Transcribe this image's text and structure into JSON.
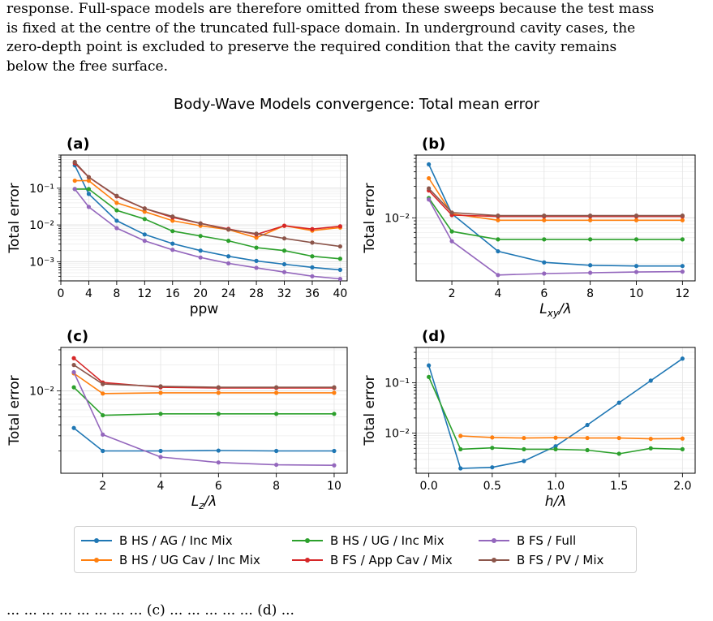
{
  "paragraph": {
    "lines": [
      "response. Full-space models are therefore omitted from these sweeps because the test mass",
      "is fixed at the centre of the truncated full-space domain. In underground cavity cases, the",
      "zero-depth point is excluded to preserve the required condition that the cavity remains",
      "below the free surface."
    ]
  },
  "figure_title": "Body-Wave Models convergence: Total mean error",
  "bottom_text": "... ... ... ... ... ... ... ... (c) ... ... ... ... ... (d) ...",
  "colors": {
    "B HS / AG / Inc Mix": "#1f77b4",
    "B HS / UG Cav / Inc Mix": "#ff7f0e",
    "B HS / UG / Inc Mix": "#2ca02c",
    "B FS / App Cav / Mix": "#d62728",
    "B FS / Full": "#9467bd",
    "B FS / PV / Mix": "#8c564b"
  },
  "legend": [
    "B HS / AG / Inc Mix",
    "B HS / UG / Inc Mix",
    "B FS / Full",
    "B HS / UG Cav / Inc Mix",
    "B FS / App Cav / Mix",
    "B FS / PV / Mix"
  ],
  "chart_data": [
    {
      "panel": "(a)",
      "type": "line",
      "xlabel": "ppw",
      "ylabel": "Total error",
      "yscale": "log",
      "ylim": [
        0.0003,
        0.8
      ],
      "xlim": [
        0,
        41
      ],
      "xticks": [
        0,
        4,
        8,
        12,
        16,
        20,
        24,
        28,
        32,
        36,
        40
      ],
      "yticks": [
        {
          "v": 0.1,
          "label": "10⁻¹"
        },
        {
          "v": 0.01,
          "label": "10⁻²"
        },
        {
          "v": 0.001,
          "label": "10⁻³"
        }
      ],
      "x": [
        2,
        4,
        8,
        12,
        16,
        20,
        24,
        28,
        32,
        36,
        40
      ],
      "series": [
        {
          "name": "B HS / AG / Inc Mix",
          "values": [
            0.42,
            0.07,
            0.013,
            0.0055,
            0.0031,
            0.002,
            0.0014,
            0.00105,
            0.00085,
            0.0007,
            0.0006
          ]
        },
        {
          "name": "B HS / UG Cav / Inc Mix",
          "values": [
            0.16,
            0.16,
            0.04,
            0.023,
            0.013,
            0.0095,
            0.0075,
            0.0045,
            0.0095,
            0.007,
            0.0085
          ]
        },
        {
          "name": "B HS / UG / Inc Mix",
          "values": [
            0.095,
            0.095,
            0.025,
            0.0145,
            0.0068,
            0.005,
            0.0037,
            0.0024,
            0.002,
            0.0014,
            0.0012
          ]
        },
        {
          "name": "B FS / App Cav / Mix",
          "values": [
            0.48,
            0.2,
            0.06,
            0.028,
            0.016,
            0.011,
            0.0078,
            0.0055,
            0.0095,
            0.0077,
            0.0092
          ]
        },
        {
          "name": "B FS / Full",
          "values": [
            0.095,
            0.031,
            0.0082,
            0.0037,
            0.0021,
            0.0013,
            0.0009,
            0.00068,
            0.00052,
            0.0004,
            0.00034
          ]
        },
        {
          "name": "B FS / PV / Mix",
          "values": [
            0.52,
            0.2,
            0.062,
            0.028,
            0.017,
            0.011,
            0.0075,
            0.0058,
            0.0043,
            0.0033,
            0.0026
          ]
        }
      ]
    },
    {
      "panel": "(b)",
      "type": "line",
      "xlabel": "L_xy/λ",
      "ylabel": "Total error",
      "yscale": "log",
      "ylim": [
        0.0011,
        0.09
      ],
      "xlim": [
        0.45,
        12.55
      ],
      "xticks": [
        2,
        4,
        6,
        8,
        10,
        12
      ],
      "yticks": [
        {
          "v": 0.01,
          "label": "10⁻²"
        }
      ],
      "x": [
        1,
        2,
        4,
        6,
        8,
        10,
        12
      ],
      "series": [
        {
          "name": "B HS / AG / Inc Mix",
          "values": [
            0.065,
            0.0115,
            0.0031,
            0.0021,
            0.0019,
            0.00185,
            0.00185
          ]
        },
        {
          "name": "B HS / UG Cav / Inc Mix",
          "values": [
            0.04,
            0.0115,
            0.0092,
            0.0092,
            0.0092,
            0.0092,
            0.0092
          ]
        },
        {
          "name": "B HS / UG / Inc Mix",
          "values": [
            0.02,
            0.0062,
            0.0047,
            0.0047,
            0.0047,
            0.0047,
            0.0047
          ]
        },
        {
          "name": "B FS / App Cav / Mix",
          "values": [
            0.026,
            0.011,
            0.0105,
            0.0105,
            0.0105,
            0.0105,
            0.0105
          ]
        },
        {
          "name": "B FS / Full",
          "values": [
            0.019,
            0.0044,
            0.00135,
            0.00142,
            0.00146,
            0.0015,
            0.00152
          ]
        },
        {
          "name": "B FS / PV / Mix",
          "values": [
            0.028,
            0.012,
            0.0108,
            0.0108,
            0.0108,
            0.0108,
            0.0108
          ]
        }
      ]
    },
    {
      "panel": "(c)",
      "type": "line",
      "xlabel": "L_z/λ",
      "ylabel": "Total error",
      "yscale": "log",
      "ylim": [
        0.0011,
        0.032
      ],
      "xlim": [
        0.55,
        10.45
      ],
      "xticks": [
        2,
        4,
        6,
        8,
        10
      ],
      "yticks": [
        {
          "v": 0.01,
          "label": "10⁻²"
        }
      ],
      "x": [
        1,
        2,
        4,
        6,
        8,
        10
      ],
      "series": [
        {
          "name": "B HS / AG / Inc Mix",
          "values": [
            0.0037,
            0.002,
            0.002,
            0.00202,
            0.002,
            0.002
          ]
        },
        {
          "name": "B HS / UG Cav / Inc Mix",
          "values": [
            0.016,
            0.0093,
            0.0095,
            0.0095,
            0.0095,
            0.0095
          ]
        },
        {
          "name": "B HS / UG / Inc Mix",
          "values": [
            0.011,
            0.0052,
            0.0054,
            0.0054,
            0.0054,
            0.0054
          ]
        },
        {
          "name": "B FS / App Cav / Mix",
          "values": [
            0.024,
            0.0125,
            0.011,
            0.0108,
            0.0108,
            0.0108
          ]
        },
        {
          "name": "B FS / Full",
          "values": [
            0.0165,
            0.0031,
            0.0017,
            0.00147,
            0.00138,
            0.00136
          ]
        },
        {
          "name": "B FS / PV / Mix",
          "values": [
            0.02,
            0.012,
            0.0113,
            0.011,
            0.011,
            0.011
          ]
        }
      ]
    },
    {
      "panel": "(d)",
      "type": "line",
      "xlabel": "h/λ",
      "ylabel": "Total error",
      "yscale": "log",
      "ylim": [
        0.0016,
        0.5
      ],
      "xlim": [
        -0.1,
        2.1
      ],
      "xticks": [
        0.0,
        0.5,
        1.0,
        1.5,
        2.0
      ],
      "xticklabels": [
        "0.0",
        "0.5",
        "1.0",
        "1.5",
        "2.0"
      ],
      "yticks": [
        {
          "v": 0.1,
          "label": "10⁻¹"
        },
        {
          "v": 0.01,
          "label": "10⁻²"
        }
      ],
      "series": [
        {
          "name": "B HS / AG / Inc Mix",
          "x": [
            0,
            0.25,
            0.5,
            0.75,
            1.0,
            1.25,
            1.5,
            1.75,
            2.0
          ],
          "values": [
            0.22,
            0.002,
            0.0021,
            0.0028,
            0.0055,
            0.0145,
            0.04,
            0.11,
            0.3
          ]
        },
        {
          "name": "B HS / UG / Inc Mix",
          "x": [
            0,
            0.25,
            0.5,
            0.75,
            1.0,
            1.25,
            1.5,
            1.75,
            2.0
          ],
          "values": [
            0.13,
            0.0048,
            0.0051,
            0.0048,
            0.0048,
            0.0046,
            0.0039,
            0.005,
            0.0048
          ]
        },
        {
          "name": "B HS / UG Cav / Inc Mix",
          "x": [
            0.25,
            0.5,
            0.75,
            1.0,
            1.25,
            1.5,
            1.75,
            2.0
          ],
          "values": [
            0.0088,
            0.0082,
            0.008,
            0.0081,
            0.008,
            0.008,
            0.0077,
            0.0078
          ]
        }
      ]
    }
  ]
}
